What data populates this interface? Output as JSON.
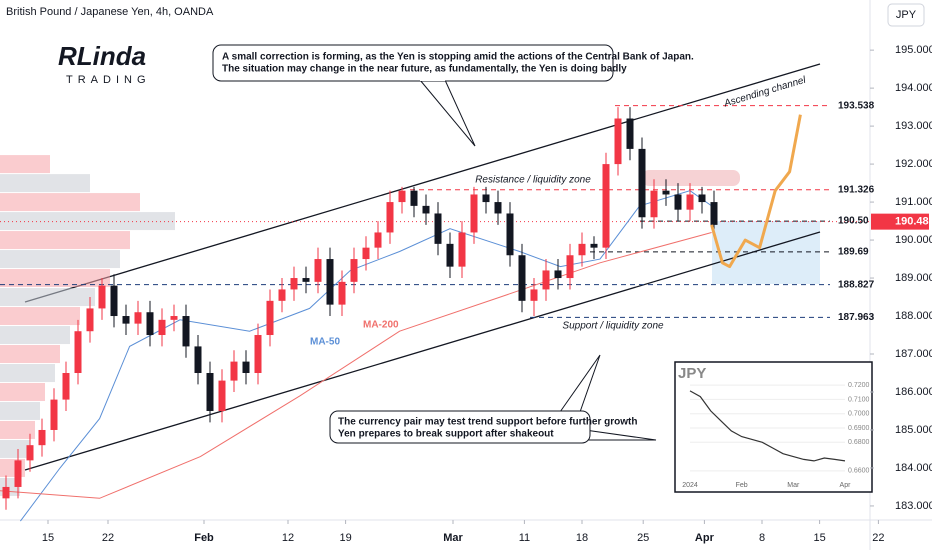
{
  "chart_data": {
    "type": "candlestick",
    "title": "British Pound / Japanese Yen, 4h, OANDA",
    "currency_button": "JPY",
    "logo": {
      "name": "RLinda",
      "tagline": "TRADING"
    },
    "up_color": "#f23645",
    "down_color": "#131722",
    "open": [
      183.2,
      183.5,
      184.2,
      184.6,
      185.0,
      185.8,
      186.5,
      187.6,
      188.2,
      188.8,
      188.0,
      187.8,
      188.1,
      187.5,
      187.9,
      188.0,
      187.2,
      186.5,
      185.5,
      186.3,
      186.8,
      186.5,
      187.5,
      188.4,
      188.7,
      189.0,
      188.9,
      189.5,
      188.3,
      188.9,
      189.5,
      189.8,
      190.2,
      191.0,
      191.3,
      190.9,
      190.7,
      189.9,
      189.3,
      190.2,
      191.2,
      191.0,
      190.7,
      189.6,
      188.4,
      188.7,
      189.2,
      189.0,
      189.6,
      189.9,
      189.8,
      192.0,
      193.2,
      192.4,
      190.6,
      191.3,
      191.2,
      190.8,
      191.2,
      191.0
    ],
    "high": [
      183.8,
      184.5,
      184.9,
      185.3,
      186.1,
      186.8,
      187.9,
      188.5,
      189.0,
      189.1,
      188.3,
      188.4,
      188.4,
      188.2,
      188.3,
      188.3,
      187.5,
      186.8,
      186.6,
      187.1,
      187.1,
      187.8,
      188.7,
      189.0,
      189.3,
      189.3,
      189.8,
      189.8,
      189.2,
      189.8,
      190.1,
      190.5,
      191.3,
      191.4,
      191.4,
      191.2,
      191.0,
      190.2,
      190.5,
      191.4,
      191.4,
      191.3,
      191.0,
      189.9,
      189.0,
      189.5,
      189.5,
      189.9,
      190.2,
      190.1,
      192.3,
      193.5,
      193.5,
      192.7,
      191.6,
      191.6,
      191.5,
      191.5,
      191.4,
      191.3
    ],
    "low": [
      182.9,
      183.2,
      183.9,
      184.3,
      184.7,
      185.5,
      186.2,
      187.3,
      187.9,
      187.7,
      187.5,
      187.5,
      187.2,
      187.2,
      187.6,
      186.9,
      186.2,
      185.2,
      185.2,
      186.0,
      186.2,
      186.2,
      187.2,
      188.1,
      188.4,
      188.6,
      188.6,
      188.0,
      188.0,
      188.6,
      189.2,
      189.5,
      189.9,
      190.7,
      190.6,
      190.4,
      189.6,
      189.0,
      189.0,
      189.9,
      190.7,
      190.4,
      189.3,
      188.1,
      188.0,
      188.4,
      188.7,
      188.7,
      189.3,
      189.5,
      189.5,
      191.7,
      192.1,
      190.3,
      190.3,
      190.9,
      190.5,
      190.5,
      190.7,
      190.1
    ],
    "close": [
      183.5,
      184.2,
      184.6,
      185.0,
      185.8,
      186.5,
      187.6,
      188.2,
      188.8,
      188.0,
      187.8,
      188.1,
      187.5,
      187.9,
      188.0,
      187.2,
      186.5,
      185.5,
      186.3,
      186.8,
      186.5,
      187.5,
      188.4,
      188.7,
      189.0,
      188.9,
      189.5,
      188.3,
      188.9,
      189.5,
      189.8,
      190.2,
      191.0,
      191.3,
      190.9,
      190.7,
      189.9,
      189.3,
      190.2,
      191.2,
      191.0,
      190.7,
      189.6,
      188.4,
      188.7,
      189.2,
      189.0,
      189.6,
      189.9,
      189.8,
      192.0,
      193.2,
      192.4,
      190.6,
      191.3,
      191.2,
      190.8,
      191.2,
      191.0,
      190.4
    ],
    "xlim": [
      -0.5,
      72.5
    ],
    "xticks": [
      {
        "value": 3.5,
        "label": "15"
      },
      {
        "value": 8.5,
        "label": "22"
      },
      {
        "value": 16.5,
        "label": "Feb"
      },
      {
        "value": 23.5,
        "label": "12"
      },
      {
        "value": 28.3,
        "label": "19"
      },
      {
        "value": 37.25,
        "label": "Mar"
      },
      {
        "value": 43.2,
        "label": "11"
      },
      {
        "value": 48,
        "label": "18"
      },
      {
        "value": 53.1,
        "label": "25"
      },
      {
        "value": 58.2,
        "label": "Apr"
      },
      {
        "value": 63,
        "label": "8"
      },
      {
        "value": 67.8,
        "label": "15"
      },
      {
        "value": 72.7,
        "label": "22"
      }
    ],
    "ylim": [
      182.63,
      196.32
    ],
    "yticks": [
      {
        "value": 183,
        "label": "183.000"
      },
      {
        "value": 184,
        "label": "184.000"
      },
      {
        "value": 185,
        "label": "185.000"
      },
      {
        "value": 186,
        "label": "186.000"
      },
      {
        "value": 187,
        "label": "187.000"
      },
      {
        "value": 188,
        "label": "188.000"
      },
      {
        "value": 189,
        "label": "189.000"
      },
      {
        "value": 190,
        "label": "190.000"
      },
      {
        "value": 191,
        "label": "191.000"
      },
      {
        "value": 192,
        "label": "192.000"
      },
      {
        "value": 193,
        "label": "193.000"
      },
      {
        "value": 194,
        "label": "194.000"
      },
      {
        "value": 195,
        "label": "195.000"
      }
    ],
    "moving_averages": [
      {
        "name": "MA-50",
        "color": "#5b8fd6",
        "x": [
          1.2,
          4.5,
          7.8,
          10.3,
          14.5,
          20.3,
          25.3,
          28.7,
          32.8,
          37,
          42.8,
          46.2,
          49.5,
          52.8,
          57,
          58.8
        ],
        "values": [
          182.6,
          184.0,
          185.3,
          187.2,
          187.9,
          187.6,
          188.2,
          189.2,
          189.7,
          190.3,
          189.7,
          189.3,
          189.5,
          190.9,
          191.3,
          190.9
        ]
      },
      {
        "name": "MA-200",
        "color": "#f0706c",
        "x": [
          -0.5,
          7.8,
          16.2,
          24.5,
          32.8,
          41.2,
          49.5,
          58.8
        ],
        "values": [
          183.4,
          183.2,
          184.3,
          185.9,
          187.6,
          188.5,
          189.4,
          190.2
        ]
      }
    ],
    "forecast": {
      "color": "#f0a84e",
      "x": [
        58.8,
        59.7,
        60.3,
        61.6,
        62.8,
        64.1,
        65.3,
        66.2
      ],
      "values": [
        190.4,
        189.4,
        189.3,
        190.0,
        189.8,
        191.3,
        191.8,
        193.3
      ]
    },
    "levels": [
      193.538,
      191.326,
      {
        "value": 190.5,
        "label": "190.50"
      },
      189.69,
      188.827,
      187.963
    ],
    "level_colors": [
      "#f23645",
      "#f23645",
      "#131722",
      "#131722",
      "#1c3d7a",
      "#1c3d7a"
    ],
    "current_price": 190.485,
    "current_color": "#f23645",
    "volume_profile": {
      "prices": [
        183.5,
        184,
        184.5,
        185,
        185.5,
        186,
        186.5,
        187,
        187.5,
        188,
        188.5,
        189,
        189.5,
        190,
        190.5,
        191,
        191.5,
        192
      ],
      "values": [
        20,
        25,
        30,
        35,
        40,
        45,
        55,
        60,
        70,
        80,
        95,
        110,
        120,
        130,
        175,
        140,
        90,
        50
      ]
    },
    "annotations": {
      "top_callout": [
        "A small correction is forming, as the Yen is stopping amid the actions of the Central Bank of Japan.",
        "The situation may change in the near future, as fundamentally, the Yen is doing badly"
      ],
      "bottom_callout": [
        "The currency pair may test trend support before further growth",
        "Yen prepares to break support after shakeout"
      ],
      "channel": "Ascending channel",
      "resistance": "Resistance / liquidity zone",
      "support": "Support / liquidity zone"
    },
    "inset": {
      "title": "JPY",
      "values": [
        0.716,
        0.712,
        0.702,
        0.695,
        0.688,
        0.684,
        0.682,
        0.68,
        0.676,
        0.672,
        0.67,
        0.668,
        0.667,
        0.669,
        0.668,
        0.667
      ],
      "ylim": [
        0.655,
        0.725
      ],
      "yticks": [
        {
          "value": 0.72,
          "label": "0.7200"
        },
        {
          "value": 0.71,
          "label": "0.7100"
        },
        {
          "value": 0.7,
          "label": "0.7000"
        },
        {
          "value": 0.69,
          "label": "0.6900"
        },
        {
          "value": 0.68,
          "label": "0.6800"
        },
        {
          "value": 0.66,
          "label": "0.6600"
        }
      ],
      "xticks": [
        {
          "value": 0,
          "label": "2024"
        },
        {
          "value": 5,
          "label": "Feb"
        },
        {
          "value": 10,
          "label": "Mar"
        },
        {
          "value": 15,
          "label": "Apr"
        }
      ]
    }
  }
}
